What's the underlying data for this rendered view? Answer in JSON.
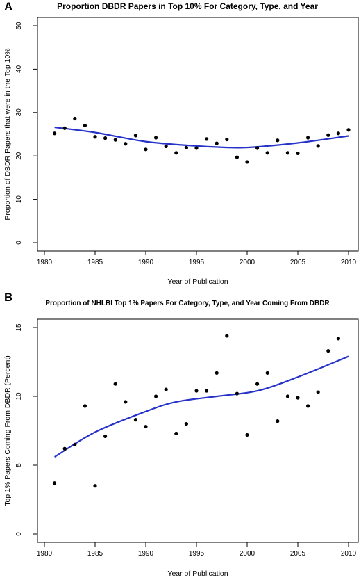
{
  "chart_data": [
    {
      "panel": "A",
      "type": "scatter",
      "title": "Proportion DBDR Papers in Top 10% For Category, Type, and Year",
      "xlabel": "Year of Publication",
      "ylabel": "Proportion of DBDR Papers that were in the Top 10%",
      "xlim": [
        1980,
        2010
      ],
      "ylim": [
        0,
        50
      ],
      "xticks": [
        1980,
        1985,
        1990,
        1995,
        2000,
        2005,
        2010
      ],
      "yticks": [
        0,
        10,
        20,
        30,
        40,
        50
      ],
      "grid": false,
      "points": {
        "x": [
          1981,
          1982,
          1983,
          1984,
          1985,
          1986,
          1987,
          1988,
          1989,
          1990,
          1991,
          1992,
          1993,
          1994,
          1995,
          1996,
          1997,
          1998,
          1999,
          2000,
          2001,
          2002,
          2003,
          2004,
          2005,
          2006,
          2007,
          2008,
          2009,
          2010
        ],
        "y": [
          25.2,
          26.4,
          28.6,
          27.0,
          24.4,
          24.1,
          23.7,
          22.8,
          24.7,
          21.5,
          24.2,
          22.2,
          20.7,
          21.9,
          21.8,
          23.9,
          22.9,
          23.8,
          19.7,
          18.6,
          21.8,
          20.7,
          23.6,
          20.7,
          20.6,
          24.2,
          22.3,
          24.8,
          25.2,
          26.0
        ],
        "color": "#000000"
      },
      "smooth": {
        "x": [
          1981,
          1985,
          1990,
          1995,
          1999,
          2001,
          2005,
          2010
        ],
        "y": [
          26.6,
          25.4,
          23.3,
          22.3,
          21.9,
          22.1,
          23.0,
          24.6
        ],
        "color": "#2632c8"
      }
    },
    {
      "panel": "B",
      "type": "scatter",
      "title": "Proportion of NHLBI Top 1% Papers For Category, Type, and Year Coming From DBDR",
      "xlabel": "Year of Publication",
      "ylabel": "Top 1% Papers Coming From DBDR (Percent)",
      "xlim": [
        1980,
        2010
      ],
      "ylim": [
        0,
        15
      ],
      "xticks": [
        1980,
        1985,
        1990,
        1995,
        2000,
        2005,
        2010
      ],
      "yticks": [
        0,
        5,
        10,
        15
      ],
      "grid": false,
      "points": {
        "x": [
          1981,
          1982,
          1983,
          1984,
          1985,
          1986,
          1987,
          1988,
          1989,
          1990,
          1991,
          1992,
          1993,
          1994,
          1995,
          1996,
          1997,
          1998,
          1999,
          2000,
          2001,
          2002,
          2003,
          2004,
          2005,
          2006,
          2007,
          2008,
          2009
        ],
        "y": [
          3.7,
          6.2,
          6.5,
          9.3,
          3.5,
          7.1,
          10.9,
          9.6,
          8.3,
          7.8,
          10.0,
          10.5,
          7.3,
          8.0,
          10.4,
          10.4,
          11.7,
          14.4,
          10.2,
          7.2,
          10.9,
          11.7,
          8.2,
          10.0,
          9.9,
          9.3,
          10.3,
          13.3,
          14.2
        ],
        "color": "#000000"
      },
      "smooth": {
        "x": [
          1981,
          1985,
          1990,
          1993,
          1997,
          2001,
          2005,
          2010
        ],
        "y": [
          5.6,
          7.4,
          8.9,
          9.6,
          10.0,
          10.4,
          11.4,
          12.9
        ],
        "color": "#2632c8"
      }
    }
  ],
  "panels": {
    "a": {
      "letter": "A",
      "title": "Proportion DBDR Papers in Top 10% For Category, Type, and Year",
      "xlabel": "Year of Publication",
      "ylabel": "Proportion of DBDR Papers that were in the Top 10%"
    },
    "b": {
      "letter": "B",
      "title": "Proportion of NHLBI Top 1% Papers For Category, Type, and Year Coming From DBDR",
      "xlabel": "Year of Publication",
      "ylabel": "Top 1% Papers Coming From DBDR (Percent)"
    }
  }
}
